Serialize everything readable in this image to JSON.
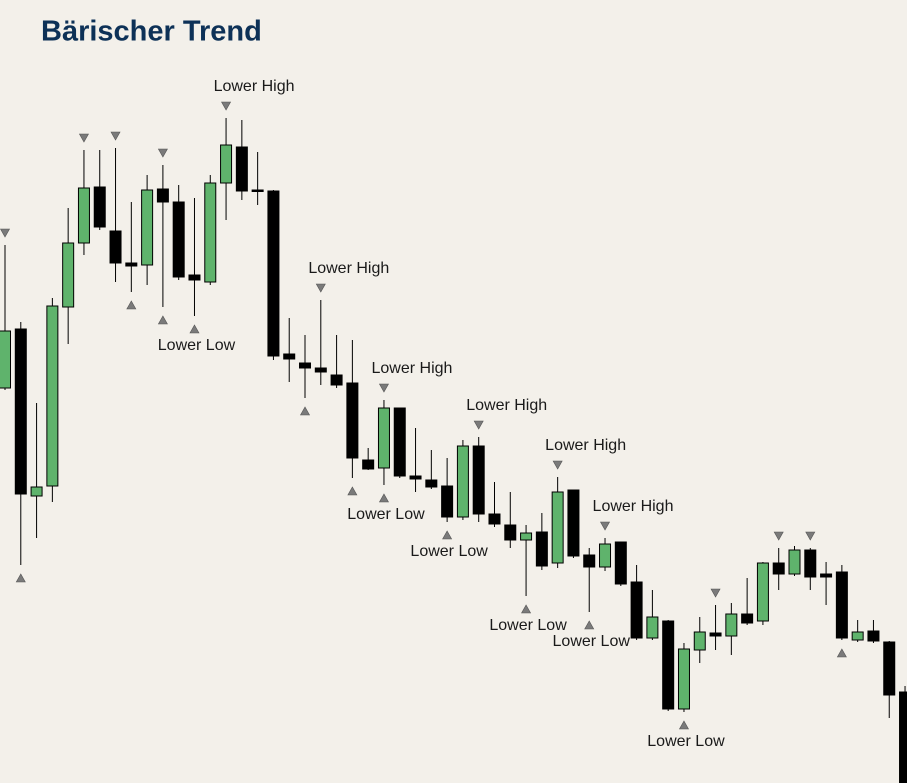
{
  "chart_data": {
    "type": "candlestick",
    "title": "Bärischer Trend",
    "ylim": [
      0,
      783
    ],
    "up_color": "#5fb36c",
    "down_color": "#000000",
    "open": [
      395,
      454,
      287,
      297,
      476,
      540,
      596,
      552,
      520,
      518,
      594,
      581,
      508,
      501,
      600,
      636,
      593,
      592,
      429,
      420,
      415,
      408,
      400,
      323,
      315,
      375,
      307,
      303,
      297,
      266,
      337,
      269,
      258,
      243,
      251,
      220,
      293,
      228,
      216,
      241,
      201,
      145,
      162,
      74,
      133,
      150,
      147,
      169,
      162,
      220,
      209,
      233,
      209,
      211,
      143,
      152,
      141,
      91
    ],
    "high": [
      538,
      461,
      380,
      485,
      575,
      633,
      633,
      635,
      581,
      608,
      618,
      598,
      585,
      608,
      665,
      663,
      631,
      593,
      465,
      448,
      483,
      448,
      443,
      335,
      383,
      375,
      355,
      333,
      325,
      343,
      346,
      301,
      291,
      258,
      270,
      306,
      293,
      235,
      245,
      241,
      218,
      193,
      163,
      140,
      166,
      178,
      180,
      205,
      221,
      235,
      237,
      235,
      221,
      218,
      163,
      163,
      142,
      97
    ],
    "low": [
      393,
      218,
      245,
      281,
      439,
      528,
      553,
      501,
      491,
      498,
      476,
      503,
      467,
      498,
      563,
      583,
      578,
      423,
      401,
      385,
      398,
      395,
      305,
      313,
      298,
      305,
      291,
      294,
      261,
      263,
      261,
      256,
      235,
      187,
      213,
      215,
      225,
      171,
      212,
      197,
      143,
      143,
      72,
      71,
      120,
      133,
      128,
      158,
      158,
      193,
      207,
      193,
      178,
      143,
      141,
      140,
      65,
      0
    ],
    "close": [
      452,
      289,
      296,
      477,
      540,
      595,
      556,
      520,
      517,
      593,
      581,
      506,
      503,
      600,
      638,
      592,
      592,
      427,
      424,
      415,
      411,
      398,
      325,
      314,
      375,
      307,
      304,
      296,
      266,
      337,
      269,
      259,
      243,
      250,
      217,
      291,
      227,
      216,
      239,
      199,
      145,
      166,
      74,
      134,
      151,
      147,
      169,
      160,
      220,
      209,
      233,
      206,
      206,
      145,
      151,
      142,
      88,
      0
    ],
    "swing_highs": [
      {
        "index": 0
      },
      {
        "index": 5
      },
      {
        "index": 7
      },
      {
        "index": 10
      },
      {
        "index": 14,
        "label": "Lower High"
      },
      {
        "index": 20,
        "label": "Lower High"
      },
      {
        "index": 24,
        "label": "Lower High"
      },
      {
        "index": 30,
        "label": "Lower High"
      },
      {
        "index": 35,
        "label": "Lower High"
      },
      {
        "index": 38,
        "label": "Lower High"
      },
      {
        "index": 45
      },
      {
        "index": 49
      },
      {
        "index": 51
      }
    ],
    "swing_lows": [
      {
        "index": 1
      },
      {
        "index": 8
      },
      {
        "index": 10
      },
      {
        "index": 12,
        "label": "Lower Low"
      },
      {
        "index": 19
      },
      {
        "index": 22
      },
      {
        "index": 24,
        "label": "Lower Low"
      },
      {
        "index": 28,
        "label": "Lower Low"
      },
      {
        "index": 33,
        "label": "Lower Low"
      },
      {
        "index": 37,
        "label": "Lower Low"
      },
      {
        "index": 43,
        "label": "Lower Low"
      },
      {
        "index": 53
      }
    ]
  }
}
